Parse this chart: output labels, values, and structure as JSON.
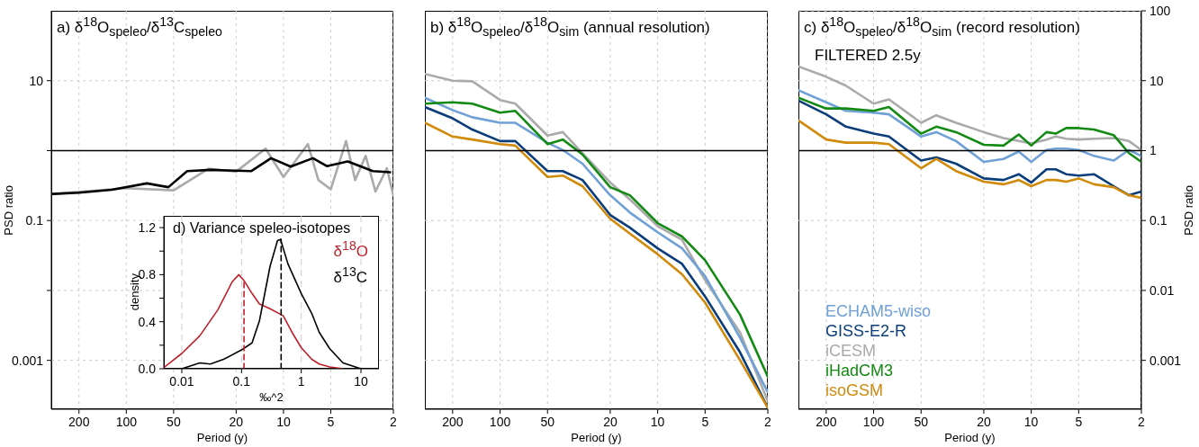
{
  "chart_data": [
    {
      "type": "line",
      "title": "a) δ$^{18}$O$_{speleo}$/δ$^{13}$C$_{speleo}$",
      "xlabel": "Period (y)",
      "ylabel": "PSD ratio",
      "xlim": [
        300,
        2
      ],
      "xticks": [
        200,
        100,
        50,
        20,
        10,
        5,
        2
      ],
      "ylim": [
        0.0002,
        100
      ],
      "yticks": [
        0.001,
        {
          "value": 0.01,
          "label": null
        },
        0.1,
        {
          "value": 1,
          "label": null
        },
        10
      ],
      "log": "xy",
      "grid": true,
      "ref_lines": [
        {
          "axis": "y",
          "value": 1,
          "color": "#000000"
        }
      ],
      "series": [
        {
          "color": "#aaaaaa",
          "x": [
            293,
            100,
            50,
            30,
            20,
            13,
            10,
            7,
            6,
            5,
            4,
            3.5,
            3,
            2.6,
            2.2,
            2
          ],
          "values": [
            0.24,
            0.29,
            0.27,
            0.55,
            0.5,
            1.07,
            0.42,
            1.24,
            0.38,
            0.28,
            1.37,
            0.38,
            0.84,
            0.26,
            0.56,
            0.23
          ]
        },
        {
          "color": "#000000",
          "x": [
            293,
            200,
            124,
            74,
            54,
            41,
            29,
            22.5,
            16,
            12,
            9,
            6.5,
            5.3,
            3.9,
            2.7,
            2.1
          ],
          "values": [
            0.24,
            0.25,
            0.275,
            0.34,
            0.3,
            0.51,
            0.53,
            0.52,
            0.51,
            0.78,
            0.59,
            0.78,
            0.6,
            0.7,
            0.51,
            0.49
          ]
        }
      ]
    },
    {
      "type": "line",
      "title": "b) δ$^{18}$O$_{speleo}$/δ$^{18}$O$_{sim}$ (annual resolution)",
      "xlabel": "Period (y)",
      "xlim": [
        300,
        2
      ],
      "xticks": [
        200,
        100,
        50,
        20,
        10,
        5,
        2
      ],
      "ylim": [
        0.0002,
        100
      ],
      "yticks": [
        0.001,
        0.01,
        0.1,
        1,
        10
      ],
      "tick_labels": "x",
      "log": "xy",
      "grid": true,
      "ref_lines": [
        {
          "axis": "y",
          "value": 1,
          "color": "#000000"
        }
      ],
      "x": [
        300,
        200,
        150,
        100,
        80,
        50,
        40,
        30,
        20,
        15,
        10,
        7,
        5,
        3,
        2
      ],
      "series": [
        {
          "color": "#aaaaaa",
          "values": [
            12.5,
            10,
            9.8,
            5.3,
            4.7,
            1.64,
            1.84,
            0.92,
            0.35,
            0.2,
            0.083,
            0.053,
            0.014,
            0.0025,
            0.00026
          ]
        },
        {
          "color": "#6fa0d6",
          "values": [
            5.7,
            3.8,
            3.0,
            2.5,
            2.5,
            1.3,
            1.02,
            0.65,
            0.23,
            0.13,
            0.068,
            0.04,
            0.016,
            0.0021,
            0.00035
          ]
        },
        {
          "color": "#0a3d7a",
          "values": [
            4.2,
            2.9,
            2.0,
            1.37,
            1.37,
            0.51,
            0.51,
            0.38,
            0.12,
            0.079,
            0.04,
            0.024,
            0.0082,
            0.0013,
            0.00021
          ]
        },
        {
          "color": "#d08a0c",
          "values": [
            2.5,
            1.59,
            1.44,
            1.24,
            1.18,
            0.42,
            0.44,
            0.31,
            0.106,
            0.065,
            0.033,
            0.017,
            0.0067,
            0.001,
            0.00021
          ]
        },
        {
          "color": "#138a13",
          "values": [
            4.7,
            4.9,
            4.7,
            3.5,
            3.7,
            1.24,
            1.44,
            0.88,
            0.3,
            0.23,
            0.092,
            0.059,
            0.027,
            0.0045,
            0.00058
          ]
        }
      ]
    },
    {
      "type": "line",
      "title": "c) δ$^{18}$O$_{speleo}$/δ$^{18}$O$_{sim}$ (record resolution)",
      "annotations": [
        "FILTERED 2.5y"
      ],
      "xlabel": "Period (y)",
      "ylabel": "PSD ratio",
      "xlim": [
        300,
        2
      ],
      "xticks": [
        200,
        100,
        50,
        20,
        10,
        5,
        2
      ],
      "ylim": [
        0.0002,
        100
      ],
      "yticks": [
        0.001,
        0.01,
        0.1,
        1,
        10,
        100
      ],
      "log": "xy",
      "grid": true,
      "legend": "bottom left",
      "ref_lines": [
        {
          "axis": "y",
          "value": 1,
          "color": "#000000"
        }
      ],
      "x": [
        300,
        200,
        150,
        100,
        80,
        50,
        40,
        30,
        20,
        15,
        12,
        10,
        8,
        7,
        6,
        5,
        4,
        3,
        2.4,
        2
      ],
      "series": [
        {
          "name": "ECHAM5-wiso",
          "color": "#6fa0d6",
          "values": [
            7.3,
            4.9,
            3.7,
            3.5,
            3.3,
            1.59,
            1.84,
            1.37,
            0.69,
            0.76,
            0.97,
            0.69,
            1.02,
            1.07,
            1.07,
            1.02,
            0.84,
            0.72,
            1.02,
            0.84
          ]
        },
        {
          "name": "GISS-E2-R",
          "color": "#0a3d7a",
          "values": [
            5.2,
            3.3,
            2.2,
            1.75,
            1.59,
            0.72,
            0.8,
            0.65,
            0.4,
            0.38,
            0.46,
            0.35,
            0.54,
            0.54,
            0.46,
            0.44,
            0.46,
            0.31,
            0.23,
            0.26
          ]
        },
        {
          "name": "iCESM",
          "color": "#aaaaaa",
          "values": [
            16,
            11.4,
            8.5,
            4.7,
            5.4,
            2.5,
            3.2,
            2.5,
            1.84,
            1.51,
            1.37,
            1.27,
            1.44,
            1.59,
            1.48,
            1.44,
            1.48,
            1.51,
            1.37,
            1.02
          ]
        },
        {
          "name": "iHadCM3",
          "color": "#138a13",
          "values": [
            5.7,
            4.0,
            4.0,
            3.7,
            4.2,
            1.75,
            2.2,
            1.84,
            1.21,
            1.18,
            1.7,
            1.18,
            1.84,
            1.75,
            2.1,
            2.1,
            2.0,
            1.67,
            0.92,
            0.69
          ]
        },
        {
          "name": "isoGSM",
          "color": "#d08a0c",
          "values": [
            2.7,
            1.44,
            1.3,
            1.3,
            1.24,
            0.56,
            0.76,
            0.51,
            0.36,
            0.33,
            0.38,
            0.31,
            0.38,
            0.38,
            0.36,
            0.4,
            0.33,
            0.3,
            0.23,
            0.21
          ]
        }
      ]
    },
    {
      "type": "line",
      "title": "d) Variance speleo-isotopes",
      "xlabel": "‰^2",
      "ylabel": "density",
      "xlim": [
        0.005,
        20
      ],
      "xticks": [
        0.01,
        0.1,
        1,
        10
      ],
      "ylim": [
        0,
        1.3
      ],
      "yticks": [
        {
          "value": 0,
          "label": "0.0"
        },
        {
          "value": 0.2,
          "label": null
        },
        0.4,
        {
          "value": 0.6,
          "label": null
        },
        0.8,
        {
          "value": 1,
          "label": null
        },
        1.2
      ],
      "log": "x",
      "grid": "x",
      "legend": "top right",
      "series": [
        {
          "name": "δ$^{18}$O",
          "color": "#c0202a",
          "x": [
            0.005,
            0.01,
            0.02,
            0.04,
            0.07,
            0.09,
            0.11,
            0.15,
            0.2,
            0.3,
            0.5,
            0.7,
            1,
            1.5,
            2,
            3,
            5
          ],
          "values": [
            0.01,
            0.13,
            0.28,
            0.5,
            0.74,
            0.8,
            0.75,
            0.64,
            0.55,
            0.51,
            0.45,
            0.31,
            0.18,
            0.08,
            0.04,
            0.015,
            0
          ]
        },
        {
          "name": "δ$^{13}$C",
          "color": "#000000",
          "x": [
            0.01,
            0.02,
            0.03,
            0.05,
            0.1,
            0.15,
            0.2,
            0.3,
            0.4,
            0.45,
            0.6,
            1,
            1.5,
            2,
            3,
            5,
            10
          ],
          "values": [
            0,
            0.05,
            0.04,
            0.08,
            0.16,
            0.22,
            0.41,
            0.87,
            1.09,
            1.1,
            0.89,
            0.64,
            0.47,
            0.31,
            0.17,
            0.05,
            0
          ]
        },
        {
          "color": "#c0202a",
          "line_style": "dashed",
          "x": [
            0.11,
            0.11
          ],
          "values": [
            0,
            0.75
          ]
        },
        {
          "color": "#000000",
          "line_style": "dashed",
          "x": [
            0.46,
            0.46
          ],
          "values": [
            0,
            1.1
          ]
        }
      ]
    }
  ]
}
